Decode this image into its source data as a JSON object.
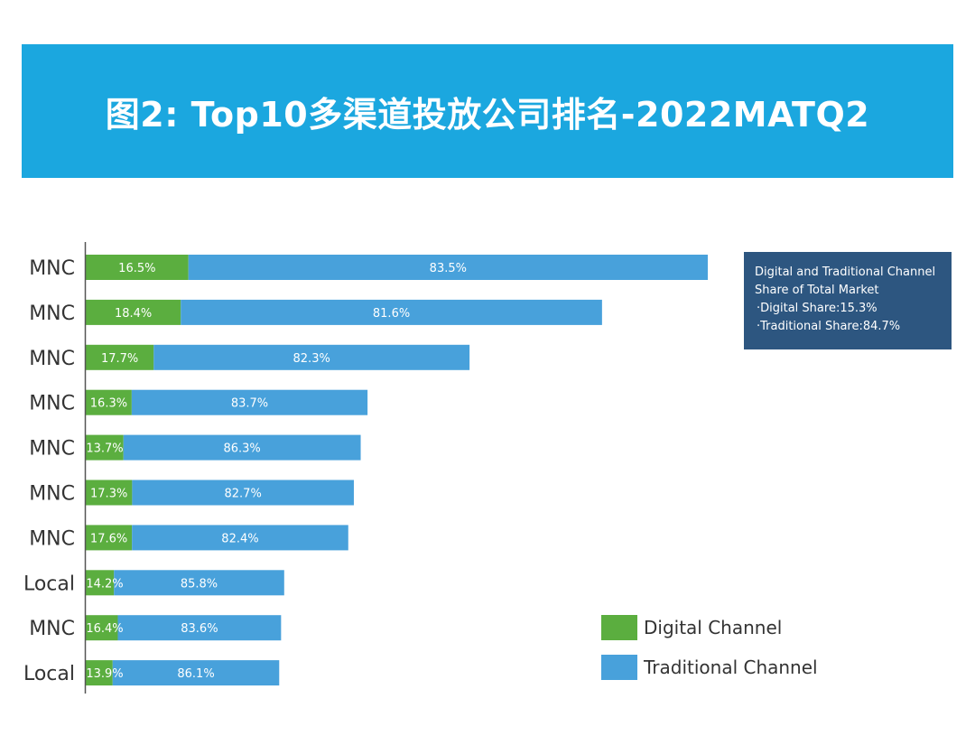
{
  "colors": {
    "banner": "#1BA7DF",
    "digital": "#5BAE3F",
    "traditional": "#48A1DB",
    "info_box": "#2D5680",
    "axis": "#555555",
    "label": "#333333"
  },
  "header": {
    "title": "图2: Top10多渠道投放公司排名-2022MATQ2"
  },
  "info_box": {
    "title": "Digital and Traditional Channel Share of Total Market",
    "title_line1": "Digital and Traditional Channel",
    "title_line2": "Share of Total Market",
    "digital_share": "·Digital Share:15.3%",
    "traditional_share": "·Traditional Share:84.7%"
  },
  "legend": {
    "digital": "Digital Channel",
    "traditional": "Traditional Channel"
  },
  "chart_data": {
    "type": "bar",
    "orientation": "horizontal",
    "stacked": true,
    "title": "图2: Top10多渠道投放公司排名-2022MATQ2",
    "categories": [
      "MNC",
      "MNC",
      "MNC",
      "MNC",
      "MNC",
      "MNC",
      "MNC",
      "Local",
      "MNC",
      "Local"
    ],
    "bar_total_relative": [
      1.0,
      0.83,
      0.617,
      0.453,
      0.442,
      0.431,
      0.422,
      0.319,
      0.314,
      0.311
    ],
    "series": [
      {
        "name": "Digital Channel",
        "values": [
          16.5,
          18.4,
          17.7,
          16.3,
          13.7,
          17.3,
          17.6,
          14.2,
          16.4,
          13.9
        ],
        "labels": [
          "16.5%",
          "18.4%",
          "17.7%",
          "16.3%",
          "13.7%",
          "17.3%",
          "17.6%",
          "14.2%",
          "16.4%",
          "13.9%"
        ]
      },
      {
        "name": "Traditional Channel",
        "values": [
          83.5,
          81.6,
          82.3,
          83.7,
          86.3,
          82.7,
          82.4,
          85.8,
          83.6,
          86.1
        ],
        "labels": [
          "83.5%",
          "81.6%",
          "82.3%",
          "83.7%",
          "86.3%",
          "82.7%",
          "82.4%",
          "85.8%",
          "83.6%",
          "86.1%"
        ]
      }
    ],
    "legend_position": "bottom-right",
    "grid": false
  }
}
